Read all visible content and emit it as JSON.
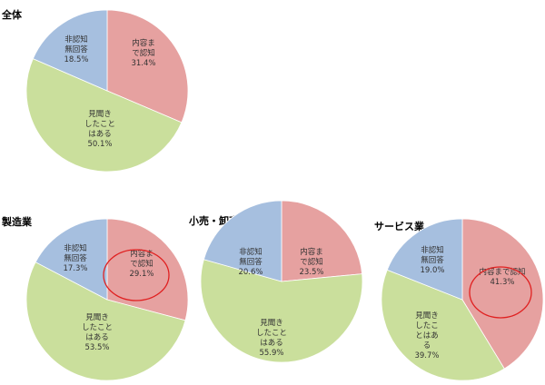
{
  "chart_data": [
    {
      "type": "pie",
      "title": "全体",
      "slices": [
        {
          "label_lines": [
            "内容ま",
            "で認知"
          ],
          "value": 31.4,
          "value_label": "31.4%",
          "color": "#e6a1a0"
        },
        {
          "label_lines": [
            "見聞き",
            "したこと",
            "はある"
          ],
          "value": 50.1,
          "value_label": "50.1%",
          "color": "#cadf9c"
        },
        {
          "label_lines": [
            "非認知",
            "無回答"
          ],
          "value": 18.5,
          "value_label": "18.5%",
          "color": "#a6bfdf"
        }
      ],
      "highlight": null
    },
    {
      "type": "pie",
      "title": "製造業",
      "slices": [
        {
          "label_lines": [
            "内容ま",
            "で認知"
          ],
          "value": 29.1,
          "value_label": "29.1%",
          "color": "#e6a1a0"
        },
        {
          "label_lines": [
            "見聞き",
            "したこと",
            "はある"
          ],
          "value": 53.5,
          "value_label": "53.5%",
          "color": "#cadf9c"
        },
        {
          "label_lines": [
            "非認知",
            "無回答"
          ],
          "value": 17.3,
          "value_label": "17.3%",
          "color": "#a6bfdf"
        }
      ],
      "highlight": "内容まで認知"
    },
    {
      "type": "pie",
      "title": "小売・卸売業",
      "slices": [
        {
          "label_lines": [
            "内容ま",
            "で認知"
          ],
          "value": 23.5,
          "value_label": "23.5%",
          "color": "#e6a1a0"
        },
        {
          "label_lines": [
            "見聞き",
            "したこと",
            "はある"
          ],
          "value": 55.9,
          "value_label": "55.9%",
          "color": "#cadf9c"
        },
        {
          "label_lines": [
            "非認知",
            "無回答"
          ],
          "value": 20.6,
          "value_label": "20.6%",
          "color": "#a6bfdf"
        }
      ],
      "highlight": null
    },
    {
      "type": "pie",
      "title": "サービス業",
      "slices": [
        {
          "label_lines": [
            "内容まで認知"
          ],
          "value": 41.3,
          "value_label": "41.3%",
          "color": "#e6a1a0"
        },
        {
          "label_lines": [
            "見聞き",
            "したこ",
            "とはあ",
            "る"
          ],
          "value": 39.7,
          "value_label": "39.7%",
          "color": "#cadf9c"
        },
        {
          "label_lines": [
            "非認知",
            "無回答"
          ],
          "value": 19.0,
          "value_label": "19.0%",
          "color": "#a6bfdf"
        }
      ],
      "highlight": "内容まで認知"
    }
  ],
  "colors": {
    "highlight_ring": "#e02020",
    "slice_border": "#ffffff"
  }
}
